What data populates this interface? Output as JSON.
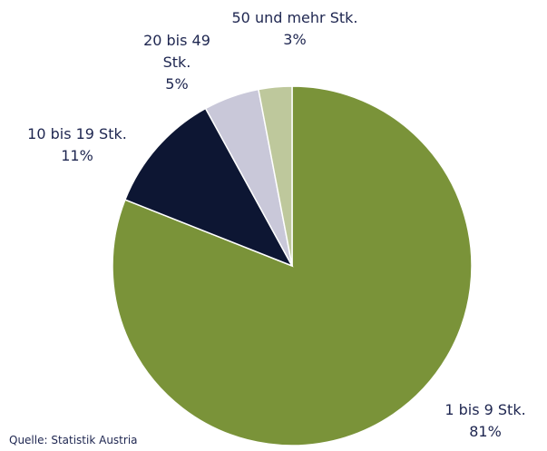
{
  "chart_data": {
    "type": "pie",
    "categories": [
      "1 bis 9 Stk.",
      "10 bis 19 Stk.",
      "20 bis 49 Stk.",
      "50 und mehr Stk."
    ],
    "values": [
      81,
      11,
      5,
      3
    ],
    "value_labels": [
      "81%",
      "11%",
      "5%",
      "3%"
    ],
    "colors": [
      "#7a9339",
      "#0d1633",
      "#c9c8d9",
      "#bec89c"
    ],
    "source": "Quelle: Statistik Austria"
  }
}
